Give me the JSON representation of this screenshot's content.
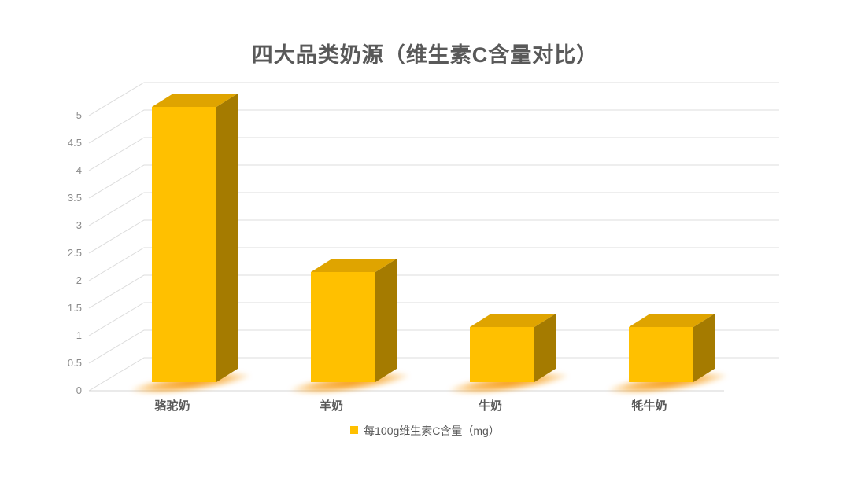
{
  "title": "四大品类奶源（维生素C含量对比）",
  "legend": {
    "label": "每100g维生素C含量（mg）",
    "marker_color": "#FFC000",
    "position": "bottom"
  },
  "chart_data": {
    "type": "bar",
    "variant": "3d-column",
    "title": "四大品类奶源（维生素C含量对比）",
    "categories": [
      "骆驼奶",
      "羊奶",
      "牛奶",
      "牦牛奶"
    ],
    "series": [
      {
        "name": "每100g维生素C含量（mg）",
        "values": [
          5,
          2,
          1,
          1
        ]
      }
    ],
    "xlabel": "",
    "ylabel": "",
    "ylim": [
      0,
      5
    ],
    "ytick_step": 0.5,
    "ytick_labels": [
      "0",
      "0.5",
      "1",
      "1.5",
      "2",
      "2.5",
      "3",
      "3.5",
      "4",
      "4.5",
      "5"
    ],
    "grid": true,
    "legend_position": "bottom",
    "colors": {
      "bar_front": "#FFC000",
      "bar_side": "#A57B00",
      "bar_top": "#DFA400",
      "glow": "#F79400",
      "gridline": "#DCDCDC",
      "baseline": "#D6D6D6",
      "axis_text": "#8C8C8C",
      "category_text": "#595959",
      "title_text": "#595959",
      "background": "#FFFFFF"
    }
  }
}
